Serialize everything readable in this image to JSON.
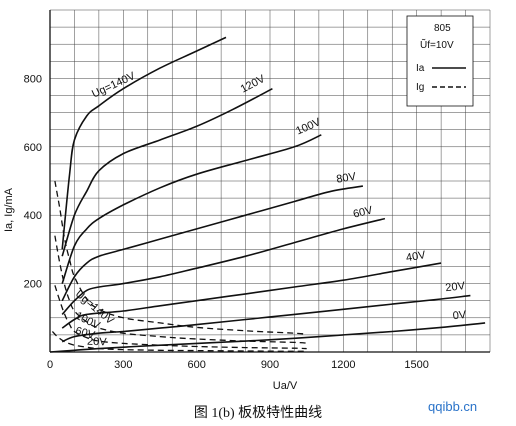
{
  "chart_data": {
    "type": "line",
    "legend": {
      "tube": "805",
      "filament": "Ũf=10V",
      "entries": [
        {
          "label": "Ia",
          "style": "solid"
        },
        {
          "label": "Ig",
          "style": "dashed"
        }
      ],
      "position": "top-right"
    },
    "xlabel": "Ua/V",
    "ylabel": "Ia, Ig/mA",
    "xlim": [
      0,
      1800
    ],
    "ylim": [
      0,
      1000
    ],
    "x_ticks": [
      0,
      300,
      600,
      900,
      1200,
      1500
    ],
    "y_ticks": [
      200,
      400,
      600,
      800
    ],
    "grid": true,
    "caption": "图   1(b)   板极特性曲线",
    "watermark": "qqibb.cn",
    "series": [
      {
        "name": "Ug=140V",
        "kind": "anode",
        "label": "Ug=140V",
        "points": [
          [
            50,
            300
          ],
          [
            80,
            520
          ],
          [
            100,
            620
          ],
          [
            150,
            690
          ],
          [
            200,
            720
          ],
          [
            300,
            770
          ],
          [
            450,
            830
          ],
          [
            600,
            880
          ],
          [
            720,
            920
          ]
        ]
      },
      {
        "name": "120V",
        "kind": "anode",
        "label": "120V",
        "points": [
          [
            50,
            280
          ],
          [
            100,
            400
          ],
          [
            150,
            470
          ],
          [
            200,
            530
          ],
          [
            300,
            580
          ],
          [
            450,
            620
          ],
          [
            600,
            660
          ],
          [
            750,
            710
          ],
          [
            910,
            770
          ]
        ]
      },
      {
        "name": "100V",
        "kind": "anode",
        "label": "100V",
        "points": [
          [
            50,
            200
          ],
          [
            100,
            310
          ],
          [
            150,
            360
          ],
          [
            200,
            390
          ],
          [
            300,
            430
          ],
          [
            450,
            480
          ],
          [
            600,
            520
          ],
          [
            800,
            560
          ],
          [
            1000,
            600
          ],
          [
            1110,
            635
          ]
        ]
      },
      {
        "name": "80V",
        "kind": "anode",
        "label": "80V",
        "points": [
          [
            50,
            150
          ],
          [
            100,
            220
          ],
          [
            150,
            260
          ],
          [
            200,
            280
          ],
          [
            300,
            300
          ],
          [
            450,
            330
          ],
          [
            600,
            360
          ],
          [
            800,
            400
          ],
          [
            1000,
            440
          ],
          [
            1150,
            470
          ],
          [
            1280,
            485
          ]
        ]
      },
      {
        "name": "60V",
        "kind": "anode",
        "label": "60V",
        "points": [
          [
            50,
            110
          ],
          [
            100,
            150
          ],
          [
            150,
            180
          ],
          [
            200,
            190
          ],
          [
            300,
            200
          ],
          [
            450,
            220
          ],
          [
            600,
            245
          ],
          [
            800,
            280
          ],
          [
            1000,
            320
          ],
          [
            1200,
            360
          ],
          [
            1370,
            390
          ]
        ]
      },
      {
        "name": "40V",
        "kind": "anode",
        "label": "40V",
        "points": [
          [
            50,
            70
          ],
          [
            100,
            95
          ],
          [
            150,
            110
          ],
          [
            300,
            120
          ],
          [
            450,
            135
          ],
          [
            600,
            150
          ],
          [
            800,
            170
          ],
          [
            1000,
            190
          ],
          [
            1200,
            210
          ],
          [
            1400,
            235
          ],
          [
            1600,
            260
          ]
        ]
      },
      {
        "name": "20V",
        "kind": "anode",
        "label": "20V",
        "points": [
          [
            50,
            30
          ],
          [
            100,
            45
          ],
          [
            200,
            55
          ],
          [
            300,
            60
          ],
          [
            450,
            70
          ],
          [
            600,
            80
          ],
          [
            800,
            95
          ],
          [
            1000,
            110
          ],
          [
            1200,
            125
          ],
          [
            1400,
            140
          ],
          [
            1600,
            155
          ],
          [
            1720,
            165
          ]
        ]
      },
      {
        "name": "0V",
        "kind": "anode",
        "label": "0V",
        "points": [
          [
            0,
            0
          ],
          [
            100,
            5
          ],
          [
            200,
            10
          ],
          [
            400,
            18
          ],
          [
            600,
            25
          ],
          [
            800,
            32
          ],
          [
            1000,
            40
          ],
          [
            1200,
            50
          ],
          [
            1400,
            60
          ],
          [
            1600,
            72
          ],
          [
            1780,
            85
          ]
        ]
      },
      {
        "name": "Ig 140V",
        "kind": "grid",
        "label": "Ug=140V",
        "points": [
          [
            20,
            500
          ],
          [
            40,
            420
          ],
          [
            60,
            330
          ],
          [
            80,
            270
          ],
          [
            100,
            220
          ],
          [
            150,
            155
          ],
          [
            200,
            125
          ],
          [
            300,
            100
          ],
          [
            450,
            85
          ],
          [
            600,
            72
          ],
          [
            800,
            62
          ],
          [
            1000,
            55
          ],
          [
            1050,
            52
          ]
        ]
      },
      {
        "name": "Ig 100V",
        "kind": "grid",
        "label": "100V",
        "points": [
          [
            20,
            340
          ],
          [
            40,
            260
          ],
          [
            60,
            195
          ],
          [
            80,
            150
          ],
          [
            100,
            120
          ],
          [
            150,
            88
          ],
          [
            200,
            70
          ],
          [
            300,
            55
          ],
          [
            450,
            45
          ],
          [
            600,
            38
          ],
          [
            800,
            32
          ],
          [
            1000,
            28
          ],
          [
            1050,
            26
          ]
        ]
      },
      {
        "name": "Ig 60V",
        "kind": "grid",
        "label": "60V",
        "points": [
          [
            20,
            195
          ],
          [
            40,
            150
          ],
          [
            60,
            110
          ],
          [
            80,
            80
          ],
          [
            100,
            60
          ],
          [
            150,
            42
          ],
          [
            200,
            32
          ],
          [
            300,
            25
          ],
          [
            450,
            20
          ],
          [
            600,
            16
          ],
          [
            800,
            13
          ],
          [
            1000,
            11
          ],
          [
            1050,
            10
          ]
        ]
      },
      {
        "name": "Ig 20V",
        "kind": "grid",
        "label": "20V",
        "points": [
          [
            10,
            60
          ],
          [
            30,
            45
          ],
          [
            60,
            30
          ],
          [
            100,
            20
          ],
          [
            150,
            14
          ],
          [
            200,
            10
          ],
          [
            300,
            7
          ],
          [
            450,
            5
          ],
          [
            600,
            4
          ],
          [
            800,
            3
          ],
          [
            1000,
            2
          ],
          [
            1050,
            2
          ]
        ]
      }
    ]
  }
}
